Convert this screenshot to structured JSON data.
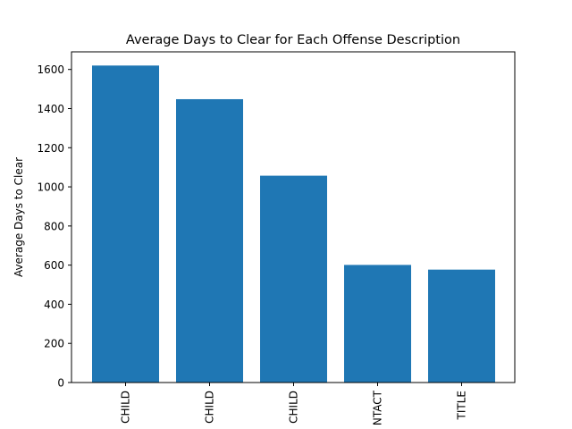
{
  "chart_data": {
    "type": "bar",
    "title": "Average Days to Clear for Each Offense Description",
    "xlabel": "",
    "ylabel": "Average Days to Clear",
    "categories": [
      "CHILD",
      "CHILD",
      "CHILD",
      "NTACT",
      "TITLE"
    ],
    "values": [
      1620,
      1448,
      1057,
      601,
      577
    ],
    "ylim": [
      0,
      1690
    ],
    "yticks": [
      0,
      200,
      400,
      600,
      800,
      1000,
      1200,
      1400,
      1600
    ],
    "bar_color": "#1f77b4",
    "grid": false
  }
}
